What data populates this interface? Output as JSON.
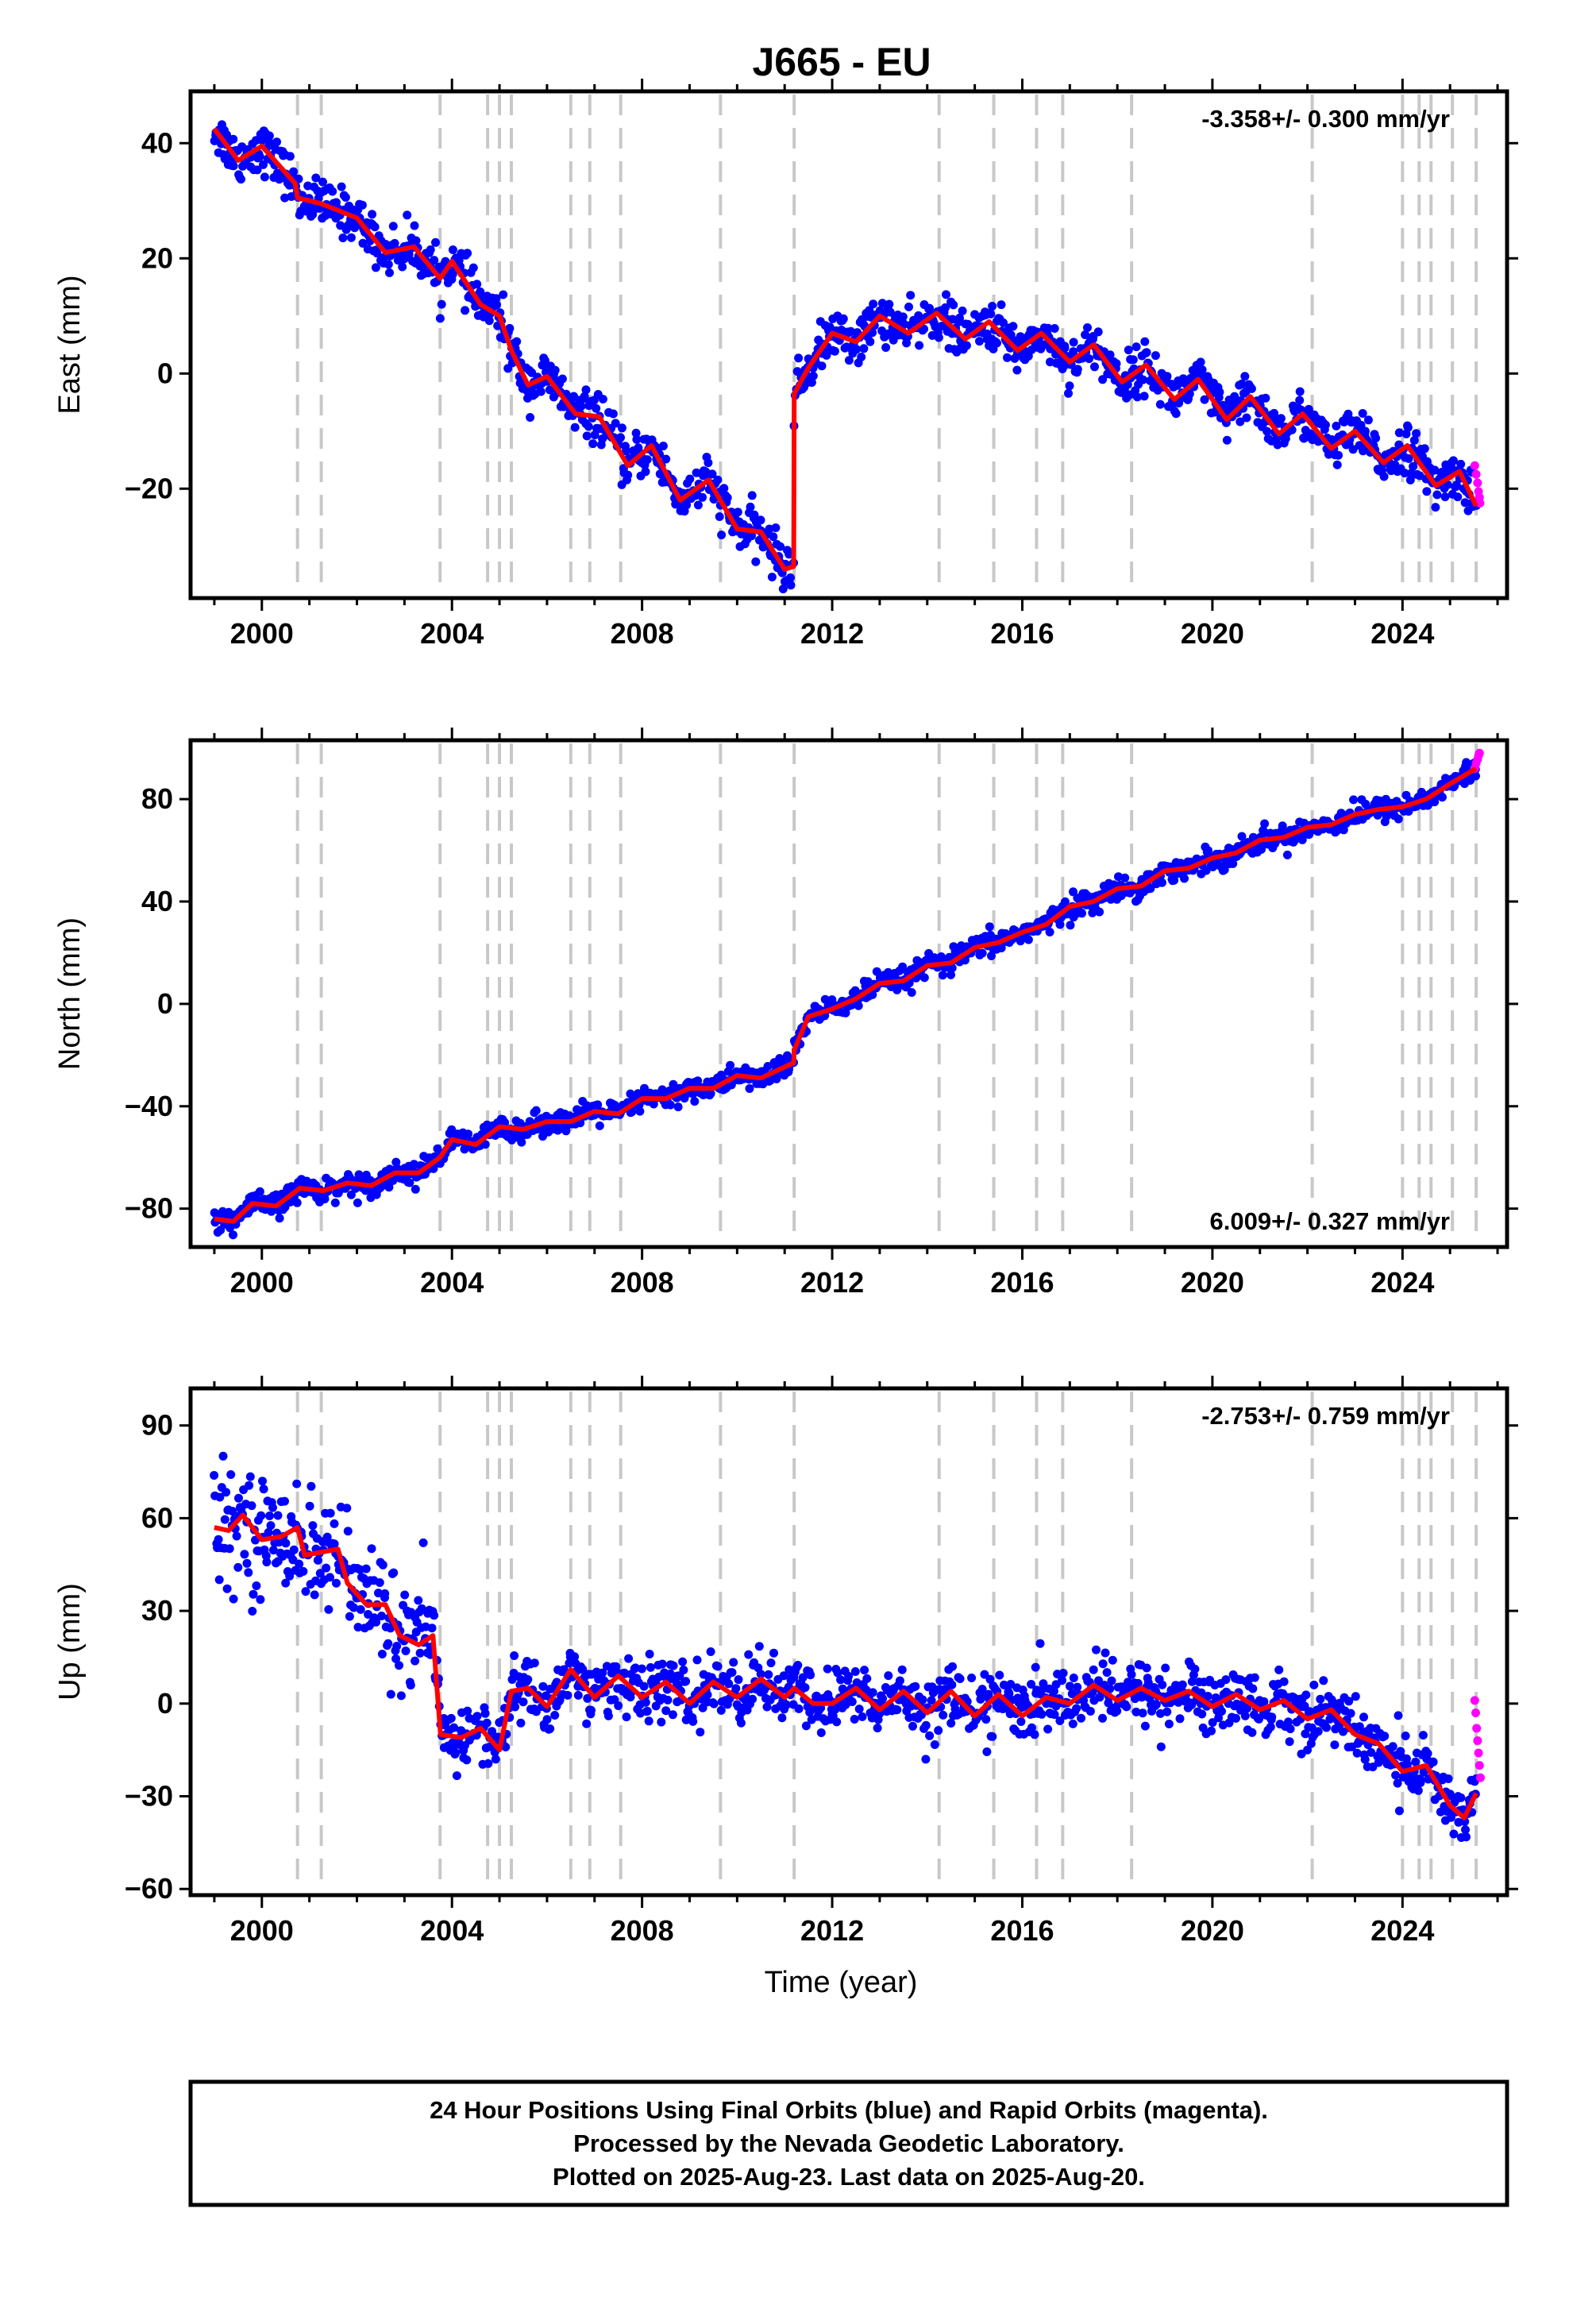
{
  "title": "J665 - EU",
  "footer": {
    "line1": "24 Hour Positions Using Final Orbits (blue) and Rapid Orbits (magenta).",
    "line2": "Processed by the Nevada Geodetic Laboratory.",
    "line3": "Plotted on 2025-Aug-23. Last data on 2025-Aug-20."
  },
  "colors": {
    "final": "#0000ff",
    "rapid": "#ff00ff",
    "model": "#ff0000",
    "event": "#c8c8c8",
    "frame": "#000000"
  },
  "chart_data": [
    {
      "type": "scatter",
      "ylabel": "East (mm)",
      "xlabel": "",
      "rate": "-3.358+/- 0.300 mm/yr",
      "rate_position": "top-right",
      "xlim": [
        1998.5,
        2026.2
      ],
      "ylim": [
        -39,
        49
      ],
      "xticks": [
        "2000",
        "2004",
        "2008",
        "2012",
        "2016",
        "2020",
        "2024"
      ],
      "yticks": [
        "-20",
        "0",
        "20",
        "40"
      ],
      "events": [
        2000.75,
        2001.25,
        2003.75,
        2004.75,
        2005.0,
        2005.25,
        2006.5,
        2006.9,
        2007.55,
        2009.65,
        2011.2,
        2014.25,
        2015.4,
        2016.3,
        2016.85,
        2018.3,
        2022.1,
        2024.0,
        2024.35,
        2024.6,
        2025.05,
        2025.55
      ],
      "trend": [
        [
          1999.0,
          42.5
        ],
        [
          1999.5,
          37.0
        ],
        [
          2000.0,
          39.5
        ],
        [
          2000.7,
          33.0
        ],
        [
          2000.75,
          30.5
        ],
        [
          2001.25,
          29.5
        ],
        [
          2002.0,
          27.0
        ],
        [
          2002.6,
          21.0
        ],
        [
          2003.2,
          22.0
        ],
        [
          2003.75,
          16.5
        ],
        [
          2004.0,
          19.5
        ],
        [
          2004.6,
          12.0
        ],
        [
          2005.0,
          10.0
        ],
        [
          2005.25,
          4.0
        ],
        [
          2005.6,
          -2.0
        ],
        [
          2006.0,
          -0.5
        ],
        [
          2006.6,
          -7.0
        ],
        [
          2007.1,
          -7.5
        ],
        [
          2007.7,
          -16.0
        ],
        [
          2008.2,
          -12.5
        ],
        [
          2008.8,
          -22.0
        ],
        [
          2009.4,
          -18.5
        ],
        [
          2010.0,
          -27.0
        ],
        [
          2010.5,
          -27.5
        ],
        [
          2011.0,
          -34.0
        ],
        [
          2011.19,
          -33.5
        ],
        [
          2011.2,
          -3.5
        ],
        [
          2011.5,
          1.0
        ],
        [
          2012.0,
          7.0
        ],
        [
          2012.5,
          5.5
        ],
        [
          2013.0,
          10.0
        ],
        [
          2013.6,
          7.0
        ],
        [
          2014.2,
          10.5
        ],
        [
          2014.8,
          6.0
        ],
        [
          2015.3,
          9.0
        ],
        [
          2015.9,
          4.0
        ],
        [
          2016.4,
          7.0
        ],
        [
          2017.0,
          2.0
        ],
        [
          2017.5,
          5.0
        ],
        [
          2018.1,
          -1.5
        ],
        [
          2018.6,
          1.5
        ],
        [
          2019.2,
          -4.5
        ],
        [
          2019.7,
          -1.0
        ],
        [
          2020.3,
          -8.0
        ],
        [
          2020.8,
          -4.0
        ],
        [
          2021.4,
          -10.5
        ],
        [
          2021.9,
          -7.0
        ],
        [
          2022.5,
          -13.0
        ],
        [
          2023.0,
          -10.0
        ],
        [
          2023.6,
          -15.5
        ],
        [
          2024.1,
          -12.5
        ],
        [
          2024.7,
          -19.5
        ],
        [
          2025.2,
          -17.0
        ],
        [
          2025.55,
          -23.0
        ]
      ],
      "scatter_sigma": 2.0,
      "rapid_points": [
        [
          2025.52,
          -16.0
        ],
        [
          2025.55,
          -17.5
        ],
        [
          2025.58,
          -19.0
        ],
        [
          2025.6,
          -20.5
        ],
        [
          2025.62,
          -21.5
        ],
        [
          2025.63,
          -22.5
        ]
      ]
    },
    {
      "type": "scatter",
      "ylabel": "North (mm)",
      "xlabel": "",
      "rate": "6.009+/- 0.327 mm/yr",
      "rate_position": "bottom-right",
      "xlim": [
        1998.5,
        2026.2
      ],
      "ylim": [
        -95,
        103
      ],
      "xticks": [
        "2000",
        "2004",
        "2008",
        "2012",
        "2016",
        "2020",
        "2024"
      ],
      "yticks": [
        "-80",
        "-40",
        "0",
        "40",
        "80"
      ],
      "events": [
        2000.75,
        2001.25,
        2003.75,
        2004.75,
        2005.0,
        2005.25,
        2006.5,
        2006.9,
        2007.55,
        2009.65,
        2011.2,
        2014.25,
        2015.4,
        2016.3,
        2016.85,
        2018.3,
        2022.1,
        2024.0,
        2024.35,
        2024.6,
        2025.05,
        2025.55
      ],
      "trend": [
        [
          1999.0,
          -84.0
        ],
        [
          1999.4,
          -85.0
        ],
        [
          1999.8,
          -78.0
        ],
        [
          2000.3,
          -79.0
        ],
        [
          2000.8,
          -72.0
        ],
        [
          2001.3,
          -73.0
        ],
        [
          2001.8,
          -70.0
        ],
        [
          2002.3,
          -71.0
        ],
        [
          2002.8,
          -66.0
        ],
        [
          2003.3,
          -66.0
        ],
        [
          2003.75,
          -60.0
        ],
        [
          2004.0,
          -53.0
        ],
        [
          2004.5,
          -55.0
        ],
        [
          2005.0,
          -48.0
        ],
        [
          2005.5,
          -49.0
        ],
        [
          2006.0,
          -46.0
        ],
        [
          2006.5,
          -46.0
        ],
        [
          2007.0,
          -42.0
        ],
        [
          2007.5,
          -43.0
        ],
        [
          2008.0,
          -37.0
        ],
        [
          2008.5,
          -37.0
        ],
        [
          2009.0,
          -33.0
        ],
        [
          2009.5,
          -33.0
        ],
        [
          2010.0,
          -28.0
        ],
        [
          2010.5,
          -29.0
        ],
        [
          2011.19,
          -23.0
        ],
        [
          2011.2,
          -18.0
        ],
        [
          2011.5,
          -5.0
        ],
        [
          2012.0,
          -2.0
        ],
        [
          2012.5,
          2.0
        ],
        [
          2013.0,
          8.0
        ],
        [
          2013.5,
          9.0
        ],
        [
          2014.0,
          15.0
        ],
        [
          2014.5,
          16.0
        ],
        [
          2015.0,
          22.0
        ],
        [
          2015.5,
          24.0
        ],
        [
          2016.0,
          28.0
        ],
        [
          2016.5,
          31.0
        ],
        [
          2017.0,
          38.0
        ],
        [
          2017.5,
          40.0
        ],
        [
          2018.0,
          45.0
        ],
        [
          2018.5,
          46.0
        ],
        [
          2019.0,
          52.0
        ],
        [
          2019.5,
          53.0
        ],
        [
          2020.0,
          57.0
        ],
        [
          2020.5,
          59.0
        ],
        [
          2021.0,
          64.0
        ],
        [
          2021.5,
          65.0
        ],
        [
          2022.0,
          69.0
        ],
        [
          2022.5,
          70.0
        ],
        [
          2023.0,
          74.0
        ],
        [
          2023.5,
          76.0
        ],
        [
          2024.0,
          77.0
        ],
        [
          2024.5,
          80.0
        ],
        [
          2025.0,
          86.0
        ],
        [
          2025.55,
          92.0
        ]
      ],
      "scatter_sigma": 2.2,
      "rapid_points": [
        [
          2025.52,
          92.0
        ],
        [
          2025.55,
          94.0
        ],
        [
          2025.58,
          95.5
        ],
        [
          2025.6,
          97.0
        ],
        [
          2025.62,
          98.0
        ]
      ]
    },
    {
      "type": "scatter",
      "ylabel": "Up (mm)",
      "xlabel": "Time (year)",
      "rate": "-2.753+/- 0.759 mm/yr",
      "rate_position": "top-right",
      "xlim": [
        1998.5,
        2026.2
      ],
      "ylim": [
        -62,
        102
      ],
      "xticks": [
        "2000",
        "2004",
        "2008",
        "2012",
        "2016",
        "2020",
        "2024"
      ],
      "yticks": [
        "-60",
        "-30",
        "0",
        "30",
        "60",
        "90"
      ],
      "events": [
        2000.75,
        2001.25,
        2003.75,
        2004.75,
        2005.0,
        2005.25,
        2006.5,
        2006.9,
        2007.55,
        2009.65,
        2011.2,
        2014.25,
        2015.4,
        2016.3,
        2016.85,
        2018.3,
        2022.1,
        2024.0,
        2024.35,
        2024.6,
        2025.05,
        2025.55
      ],
      "trend": [
        [
          1999.0,
          57.0
        ],
        [
          1999.3,
          56.0
        ],
        [
          1999.6,
          61.0
        ],
        [
          2000.0,
          53.0
        ],
        [
          2000.4,
          54.0
        ],
        [
          2000.75,
          57.0
        ],
        [
          2000.9,
          48.0
        ],
        [
          2001.25,
          49.0
        ],
        [
          2001.6,
          50.0
        ],
        [
          2001.8,
          39.0
        ],
        [
          2002.2,
          32.0
        ],
        [
          2002.6,
          32.0
        ],
        [
          2002.9,
          22.0
        ],
        [
          2003.3,
          19.0
        ],
        [
          2003.6,
          22.0
        ],
        [
          2003.76,
          -10.0
        ],
        [
          2004.2,
          -11.0
        ],
        [
          2004.6,
          -8.0
        ],
        [
          2005.0,
          -15.0
        ],
        [
          2005.25,
          4.0
        ],
        [
          2005.6,
          5.0
        ],
        [
          2006.0,
          -1.0
        ],
        [
          2006.5,
          11.0
        ],
        [
          2007.0,
          2.0
        ],
        [
          2007.5,
          9.0
        ],
        [
          2008.0,
          2.0
        ],
        [
          2008.5,
          7.0
        ],
        [
          2009.0,
          0.0
        ],
        [
          2009.5,
          7.0
        ],
        [
          2010.0,
          2.0
        ],
        [
          2010.5,
          8.0
        ],
        [
          2011.0,
          2.0
        ],
        [
          2011.2,
          5.0
        ],
        [
          2011.6,
          0.0
        ],
        [
          2012.0,
          0.0
        ],
        [
          2012.5,
          5.0
        ],
        [
          2013.0,
          -2.0
        ],
        [
          2013.5,
          4.0
        ],
        [
          2014.0,
          -3.0
        ],
        [
          2014.5,
          4.0
        ],
        [
          2015.0,
          -4.0
        ],
        [
          2015.5,
          3.0
        ],
        [
          2016.0,
          -4.0
        ],
        [
          2016.5,
          2.0
        ],
        [
          2017.0,
          0.0
        ],
        [
          2017.5,
          6.0
        ],
        [
          2018.0,
          1.0
        ],
        [
          2018.5,
          5.0
        ],
        [
          2019.0,
          1.0
        ],
        [
          2019.5,
          4.0
        ],
        [
          2020.0,
          -1.0
        ],
        [
          2020.5,
          3.0
        ],
        [
          2021.0,
          -2.0
        ],
        [
          2021.5,
          1.0
        ],
        [
          2022.0,
          -5.0
        ],
        [
          2022.5,
          -2.0
        ],
        [
          2023.0,
          -10.0
        ],
        [
          2023.5,
          -13.0
        ],
        [
          2024.0,
          -22.0
        ],
        [
          2024.5,
          -20.0
        ],
        [
          2025.0,
          -33.0
        ],
        [
          2025.3,
          -37.0
        ],
        [
          2025.55,
          -29.0
        ]
      ],
      "scatter_sigma": 5.0,
      "rapid_points": [
        [
          2025.52,
          1.0
        ],
        [
          2025.54,
          -3.0
        ],
        [
          2025.56,
          -8.0
        ],
        [
          2025.58,
          -12.0
        ],
        [
          2025.6,
          -16.0
        ],
        [
          2025.62,
          -20.0
        ],
        [
          2025.64,
          -24.0
        ]
      ]
    }
  ]
}
